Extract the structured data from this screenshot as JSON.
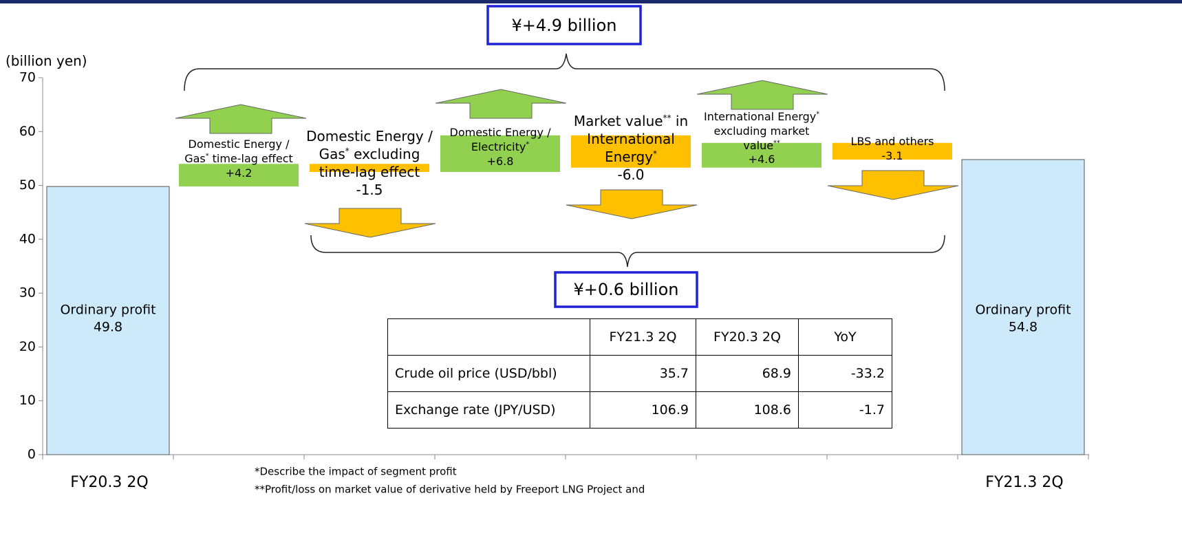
{
  "chart_data": {
    "type": "waterfall",
    "y_axis_label": "(billion yen)",
    "categories": [
      "FY20.3 2Q",
      null,
      null,
      null,
      null,
      null,
      null,
      "FY21.3 2Q"
    ],
    "segment_labels": [
      "Ordinary profit",
      "Domestic Energy / Gas* time-lag effect",
      "Domestic Energy / Gas* excluding time-lag effect",
      "Domestic Energy / Electricity*",
      "Market value** in International Energy*",
      "International Energy* excluding market value**",
      "LBS and others",
      "Ordinary profit"
    ],
    "kinds": [
      "total",
      "delta",
      "delta",
      "delta",
      "delta",
      "delta",
      "delta",
      "total"
    ],
    "values": [
      49.8,
      4.2,
      -1.5,
      6.8,
      -6.0,
      4.6,
      -3.1,
      54.8
    ],
    "value_labels": [
      "49.8",
      "+4.2",
      "-1.5",
      "+6.8",
      "-6.0",
      "+4.6",
      "-3.1",
      "54.8"
    ],
    "colors": {
      "total": "#cdeafb",
      "increase": "#92d050",
      "decrease": "#ffc000"
    },
    "ylim": [
      0,
      70
    ],
    "yticks": [
      0,
      10,
      20,
      30,
      40,
      50,
      60,
      70
    ],
    "brackets": [
      {
        "label": "¥+4.9 billion"
      },
      {
        "label": "¥+0.6 billion"
      }
    ],
    "table": {
      "header": [
        "FY21.3 2Q",
        "FY20.3 2Q",
        "YoY"
      ],
      "rows": [
        {
          "label": "Crude oil price (USD/bbl)",
          "values": [
            "35.7",
            "68.9",
            "-33.2"
          ]
        },
        {
          "label": "Exchange rate (JPY/USD)",
          "values": [
            "106.9",
            "108.6",
            "-1.7"
          ]
        }
      ]
    },
    "footnotes": [
      "*Describe the impact of segment profit",
      "**Profit/loss on market value of derivative held by Freeport LNG Project and"
    ]
  }
}
